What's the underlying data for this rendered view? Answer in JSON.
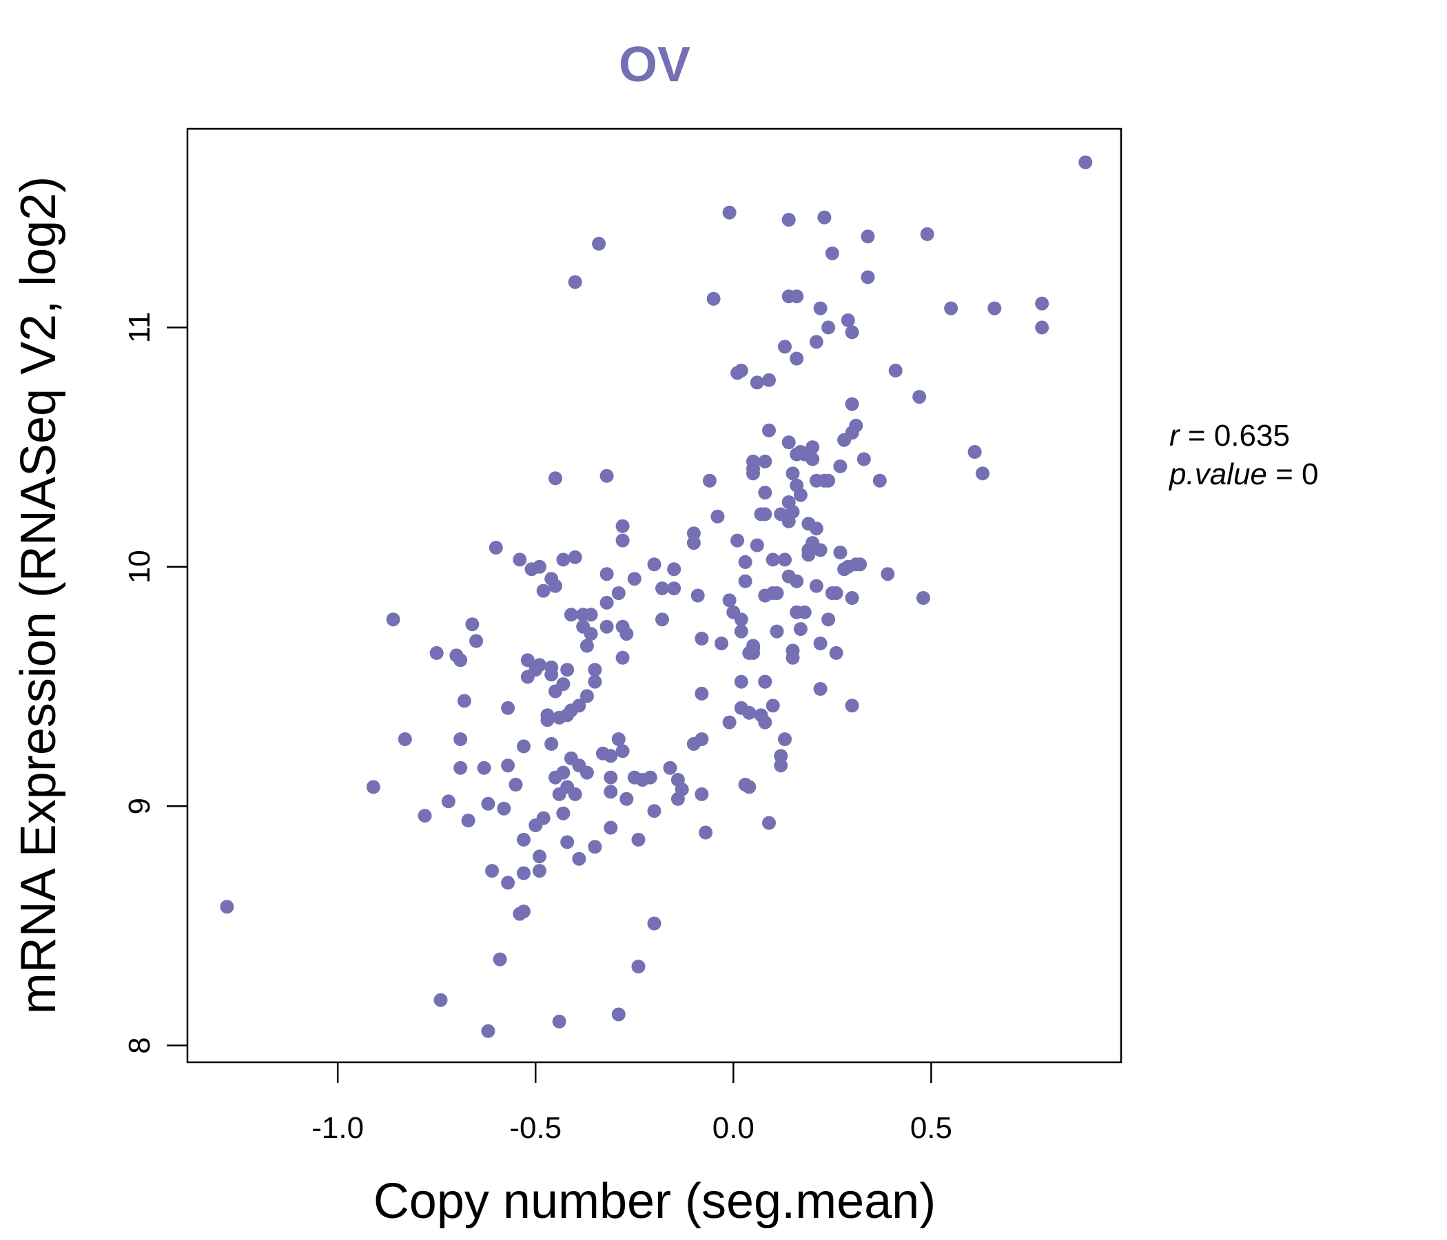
{
  "chart_data": {
    "type": "scatter",
    "title": "OV",
    "xlabel": "Copy number (seg.mean)",
    "ylabel": "mRNA Expression (RNASeq V2, log2)",
    "xlim": [
      -1.38,
      0.98
    ],
    "ylim": [
      7.93,
      11.83
    ],
    "xticks": [
      -1.0,
      -0.5,
      0.0,
      0.5
    ],
    "xtick_labels": [
      "-1.0",
      "-0.5",
      "0.0",
      "0.5"
    ],
    "yticks": [
      8,
      9,
      10,
      11
    ],
    "ytick_labels": [
      "8",
      "9",
      "10",
      "11"
    ],
    "grid": false,
    "legend": "none",
    "point_color": "#7570b3",
    "title_color": "#7570b3",
    "stats": {
      "r_label": "r",
      "r_value": "0.635",
      "p_label": "p.value",
      "p_value": "0"
    },
    "points": [
      [
        -1.28,
        8.58
      ],
      [
        -0.91,
        9.08
      ],
      [
        -0.86,
        9.78
      ],
      [
        -0.83,
        9.28
      ],
      [
        -0.78,
        8.96
      ],
      [
        -0.75,
        9.64
      ],
      [
        -0.74,
        8.19
      ],
      [
        -0.72,
        9.02
      ],
      [
        -0.7,
        9.63
      ],
      [
        -0.69,
        9.61
      ],
      [
        -0.69,
        9.28
      ],
      [
        -0.69,
        9.16
      ],
      [
        -0.68,
        9.44
      ],
      [
        -0.67,
        8.94
      ],
      [
        -0.66,
        9.76
      ],
      [
        -0.65,
        9.69
      ],
      [
        -0.63,
        9.16
      ],
      [
        -0.62,
        8.06
      ],
      [
        -0.62,
        9.01
      ],
      [
        -0.61,
        8.73
      ],
      [
        -0.6,
        10.08
      ],
      [
        -0.59,
        8.36
      ],
      [
        -0.58,
        8.99
      ],
      [
        -0.57,
        9.17
      ],
      [
        -0.57,
        9.41
      ],
      [
        -0.57,
        8.68
      ],
      [
        -0.55,
        9.09
      ],
      [
        -0.54,
        8.55
      ],
      [
        -0.54,
        10.03
      ],
      [
        -0.53,
        8.72
      ],
      [
        -0.53,
        8.86
      ],
      [
        -0.53,
        8.56
      ],
      [
        -0.53,
        9.25
      ],
      [
        -0.52,
        9.54
      ],
      [
        -0.52,
        9.61
      ],
      [
        -0.51,
        9.99
      ],
      [
        -0.5,
        9.57
      ],
      [
        -0.5,
        8.92
      ],
      [
        -0.49,
        9.59
      ],
      [
        -0.49,
        10.0
      ],
      [
        -0.49,
        8.79
      ],
      [
        -0.49,
        8.73
      ],
      [
        -0.48,
        8.95
      ],
      [
        -0.48,
        9.9
      ],
      [
        -0.47,
        9.36
      ],
      [
        -0.47,
        9.38
      ],
      [
        -0.46,
        9.58
      ],
      [
        -0.46,
        9.55
      ],
      [
        -0.46,
        9.26
      ],
      [
        -0.46,
        9.95
      ],
      [
        -0.45,
        9.12
      ],
      [
        -0.45,
        9.48
      ],
      [
        -0.45,
        10.37
      ],
      [
        -0.45,
        9.92
      ],
      [
        -0.44,
        8.1
      ],
      [
        -0.44,
        9.05
      ],
      [
        -0.44,
        9.37
      ],
      [
        -0.43,
        10.03
      ],
      [
        -0.43,
        9.51
      ],
      [
        -0.43,
        9.14
      ],
      [
        -0.43,
        8.97
      ],
      [
        -0.42,
        9.38
      ],
      [
        -0.42,
        9.08
      ],
      [
        -0.42,
        8.85
      ],
      [
        -0.42,
        9.57
      ],
      [
        -0.41,
        9.8
      ],
      [
        -0.41,
        9.4
      ],
      [
        -0.41,
        9.2
      ],
      [
        -0.4,
        11.19
      ],
      [
        -0.4,
        10.04
      ],
      [
        -0.4,
        9.05
      ],
      [
        -0.39,
        9.17
      ],
      [
        -0.39,
        9.42
      ],
      [
        -0.39,
        8.78
      ],
      [
        -0.38,
        9.8
      ],
      [
        -0.38,
        9.75
      ],
      [
        -0.37,
        9.67
      ],
      [
        -0.37,
        9.46
      ],
      [
        -0.37,
        9.14
      ],
      [
        -0.36,
        9.8
      ],
      [
        -0.36,
        9.72
      ],
      [
        -0.35,
        9.57
      ],
      [
        -0.35,
        9.52
      ],
      [
        -0.35,
        8.83
      ],
      [
        -0.34,
        11.35
      ],
      [
        -0.33,
        9.22
      ],
      [
        -0.32,
        10.38
      ],
      [
        -0.32,
        9.97
      ],
      [
        -0.32,
        9.85
      ],
      [
        -0.32,
        9.75
      ],
      [
        -0.31,
        9.21
      ],
      [
        -0.31,
        9.12
      ],
      [
        -0.31,
        9.06
      ],
      [
        -0.31,
        8.91
      ],
      [
        -0.29,
        9.28
      ],
      [
        -0.29,
        8.13
      ],
      [
        -0.29,
        9.89
      ],
      [
        -0.28,
        10.17
      ],
      [
        -0.28,
        10.11
      ],
      [
        -0.28,
        9.75
      ],
      [
        -0.28,
        9.62
      ],
      [
        -0.28,
        9.23
      ],
      [
        -0.27,
        9.72
      ],
      [
        -0.27,
        9.03
      ],
      [
        -0.25,
        9.12
      ],
      [
        -0.25,
        9.95
      ],
      [
        -0.24,
        8.33
      ],
      [
        -0.24,
        8.86
      ],
      [
        -0.23,
        9.11
      ],
      [
        -0.21,
        9.12
      ],
      [
        -0.2,
        10.01
      ],
      [
        -0.2,
        8.51
      ],
      [
        -0.2,
        8.98
      ],
      [
        -0.18,
        9.91
      ],
      [
        -0.18,
        9.78
      ],
      [
        -0.16,
        9.16
      ],
      [
        -0.15,
        9.99
      ],
      [
        -0.15,
        9.91
      ],
      [
        -0.14,
        9.11
      ],
      [
        -0.14,
        9.03
      ],
      [
        -0.13,
        9.07
      ],
      [
        -0.1,
        10.14
      ],
      [
        -0.1,
        10.1
      ],
      [
        -0.1,
        9.26
      ],
      [
        -0.09,
        9.88
      ],
      [
        -0.08,
        9.7
      ],
      [
        -0.08,
        9.47
      ],
      [
        -0.08,
        9.28
      ],
      [
        -0.08,
        9.05
      ],
      [
        -0.07,
        8.89
      ],
      [
        -0.06,
        10.36
      ],
      [
        -0.05,
        11.12
      ],
      [
        -0.04,
        10.21
      ],
      [
        -0.03,
        9.68
      ],
      [
        -0.01,
        11.48
      ],
      [
        -0.01,
        9.86
      ],
      [
        -0.01,
        9.35
      ],
      [
        0.0,
        9.81
      ],
      [
        0.01,
        10.11
      ],
      [
        0.01,
        10.81
      ],
      [
        0.02,
        10.82
      ],
      [
        0.02,
        9.78
      ],
      [
        0.02,
        9.73
      ],
      [
        0.02,
        9.52
      ],
      [
        0.02,
        9.41
      ],
      [
        0.03,
        9.94
      ],
      [
        0.03,
        10.02
      ],
      [
        0.03,
        9.09
      ],
      [
        0.04,
        9.64
      ],
      [
        0.04,
        9.08
      ],
      [
        0.04,
        9.39
      ],
      [
        0.05,
        10.44
      ],
      [
        0.05,
        9.67
      ],
      [
        0.05,
        9.66
      ],
      [
        0.05,
        9.64
      ],
      [
        0.05,
        10.41
      ],
      [
        0.05,
        10.39
      ],
      [
        0.06,
        10.77
      ],
      [
        0.06,
        10.09
      ],
      [
        0.07,
        10.22
      ],
      [
        0.07,
        9.38
      ],
      [
        0.08,
        10.44
      ],
      [
        0.08,
        10.31
      ],
      [
        0.08,
        10.22
      ],
      [
        0.08,
        9.88
      ],
      [
        0.08,
        9.52
      ],
      [
        0.08,
        9.52
      ],
      [
        0.08,
        9.35
      ],
      [
        0.09,
        10.78
      ],
      [
        0.09,
        8.93
      ],
      [
        0.09,
        10.57
      ],
      [
        0.1,
        10.03
      ],
      [
        0.1,
        9.42
      ],
      [
        0.1,
        9.89
      ],
      [
        0.11,
        9.89
      ],
      [
        0.11,
        9.73
      ],
      [
        0.12,
        10.22
      ],
      [
        0.12,
        9.21
      ],
      [
        0.12,
        9.17
      ],
      [
        0.13,
        10.03
      ],
      [
        0.13,
        9.28
      ],
      [
        0.13,
        10.92
      ],
      [
        0.14,
        11.45
      ],
      [
        0.14,
        11.13
      ],
      [
        0.14,
        10.52
      ],
      [
        0.14,
        10.27
      ],
      [
        0.14,
        10.19
      ],
      [
        0.14,
        9.96
      ],
      [
        0.15,
        10.23
      ],
      [
        0.15,
        10.39
      ],
      [
        0.15,
        9.65
      ],
      [
        0.15,
        9.62
      ],
      [
        0.16,
        11.13
      ],
      [
        0.16,
        10.87
      ],
      [
        0.16,
        10.47
      ],
      [
        0.16,
        10.34
      ],
      [
        0.16,
        9.94
      ],
      [
        0.16,
        9.81
      ],
      [
        0.17,
        10.48
      ],
      [
        0.17,
        10.3
      ],
      [
        0.17,
        9.74
      ],
      [
        0.18,
        9.81
      ],
      [
        0.18,
        10.47
      ],
      [
        0.19,
        10.05
      ],
      [
        0.19,
        10.18
      ],
      [
        0.19,
        10.07
      ],
      [
        0.2,
        10.45
      ],
      [
        0.2,
        10.1
      ],
      [
        0.2,
        10.5
      ],
      [
        0.21,
        10.16
      ],
      [
        0.21,
        10.36
      ],
      [
        0.21,
        10.94
      ],
      [
        0.21,
        9.92
      ],
      [
        0.22,
        10.07
      ],
      [
        0.22,
        9.68
      ],
      [
        0.22,
        9.49
      ],
      [
        0.22,
        11.08
      ],
      [
        0.23,
        10.36
      ],
      [
        0.23,
        11.46
      ],
      [
        0.24,
        11.0
      ],
      [
        0.24,
        9.78
      ],
      [
        0.24,
        10.36
      ],
      [
        0.25,
        11.31
      ],
      [
        0.25,
        9.89
      ],
      [
        0.26,
        9.89
      ],
      [
        0.26,
        9.64
      ],
      [
        0.27,
        10.06
      ],
      [
        0.27,
        10.42
      ],
      [
        0.28,
        9.99
      ],
      [
        0.28,
        10.53
      ],
      [
        0.29,
        11.03
      ],
      [
        0.29,
        10.0
      ],
      [
        0.3,
        10.56
      ],
      [
        0.3,
        10.98
      ],
      [
        0.3,
        10.68
      ],
      [
        0.3,
        9.87
      ],
      [
        0.3,
        9.42
      ],
      [
        0.31,
        10.01
      ],
      [
        0.31,
        10.59
      ],
      [
        0.32,
        10.01
      ],
      [
        0.33,
        10.45
      ],
      [
        0.34,
        11.38
      ],
      [
        0.34,
        11.21
      ],
      [
        0.37,
        10.36
      ],
      [
        0.39,
        9.97
      ],
      [
        0.41,
        10.82
      ],
      [
        0.47,
        10.71
      ],
      [
        0.48,
        9.87
      ],
      [
        0.49,
        11.39
      ],
      [
        0.55,
        11.08
      ],
      [
        0.61,
        10.48
      ],
      [
        0.63,
        10.39
      ],
      [
        0.66,
        11.08
      ],
      [
        0.78,
        11.1
      ],
      [
        0.78,
        11.0
      ],
      [
        0.89,
        11.69
      ]
    ]
  }
}
